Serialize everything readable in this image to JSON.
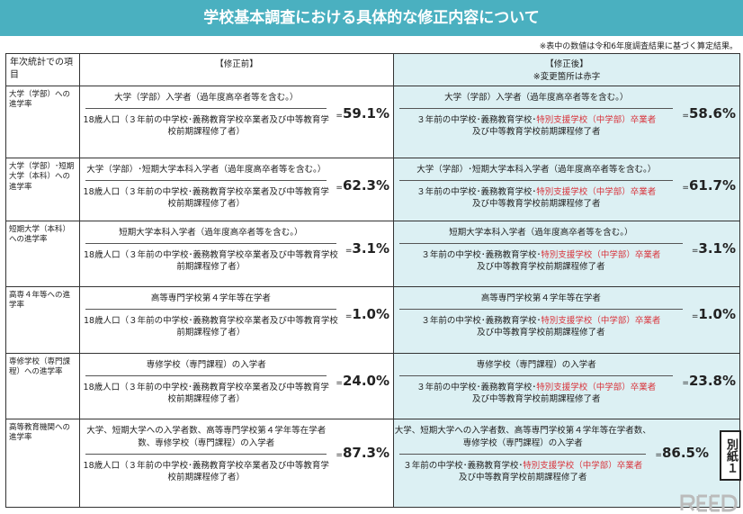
{
  "title": "学校基本調査における具体的な修正内容について",
  "note": "※表中の数値は令和6年度調査結果に基づく算定結果。",
  "header": {
    "item": "年次統計での項目",
    "before": "【修正前】",
    "after": "【修正後】",
    "after_note": "※変更箇所は赤字"
  },
  "rows": [
    {
      "item": "大学（学部）への進学率",
      "before_num": "大学（学部）入学者（過年度高卒者等を含む。）",
      "before_den": "18歳人口（３年前の中学校･義務教育学校卒業者及び中等教育学校前期課程修了者）",
      "before_val": "59.1%",
      "after_num": "大学（学部）入学者（過年度高卒者等を含む。）",
      "after_den_a": "３年前の中学校･義務教育学校･",
      "after_den_red": "特別支援学校（中学部）卒業者",
      "after_den_b": "及び中等教育学校前期課程修了者",
      "after_val": "58.6%"
    },
    {
      "item": "大学（学部）･短期大学（本科）への進学率",
      "before_num": "大学（学部）･短期大学本科入学者（過年度高卒者等を含む。）",
      "before_den": "18歳人口（３年前の中学校･義務教育学校卒業者及び中等教育学校前期課程修了者）",
      "before_val": "62.3%",
      "after_num": "大学（学部）･短期大学本科入学者（過年度高卒者等を含む。）",
      "after_den_a": "３年前の中学校･義務教育学校･",
      "after_den_red": "特別支援学校（中学部）卒業者",
      "after_den_b": "及び中等教育学校前期課程修了者",
      "after_val": "61.7%"
    },
    {
      "item": "短期大学（本科）への進学率",
      "before_num": "短期大学本科入学者（過年度高卒者等を含む。）",
      "before_den": "18歳人口（３年前の中学校･義務教育学校卒業者及び中等教育学校前期課程修了者）",
      "before_val": "3.1%",
      "after_num": "短期大学本科入学者（過年度高卒者等を含む。）",
      "after_den_a": "３年前の中学校･義務教育学校･",
      "after_den_red": "特別支援学校（中学部）卒業者",
      "after_den_b": "及び中等教育学校前期課程修了者",
      "after_val": "3.1%"
    },
    {
      "item": "高専４年等への進学率",
      "before_num": "高等専門学校第４学年等在学者",
      "before_den": "18歳人口（３年前の中学校･義務教育学校卒業者及び中等教育学校前期課程修了者）",
      "before_val": "1.0%",
      "after_num": "高等専門学校第４学年等在学者",
      "after_den_a": "３年前の中学校･義務教育学校･",
      "after_den_red": "特別支援学校（中学部）卒業者",
      "after_den_b": "及び中等教育学校前期課程修了者",
      "after_val": "1.0%"
    },
    {
      "item": "専修学校（専門課程）への進学率",
      "before_num": "専修学校（専門課程）の入学者",
      "before_den": "18歳人口（３年前の中学校･義務教育学校卒業者及び中等教育学校前期課程修了者）",
      "before_val": "24.0%",
      "after_num": "専修学校（専門課程）の入学者",
      "after_den_a": "３年前の中学校･義務教育学校･",
      "after_den_red": "特別支援学校（中学部）卒業者",
      "after_den_b": "及び中等教育学校前期課程修了者",
      "after_val": "23.8%"
    },
    {
      "item": "高等教育機関への進学率",
      "before_num": "大学、短期大学への入学者数、高等専門学校第４学年等在学者数、専修学校（専門課程）の入学者",
      "before_den": "18歳人口（３年前の中学校･義務教育学校卒業者及び中等教育学校前期課程修了者）",
      "before_val": "87.3%",
      "after_num": "大学、短期大学への入学者数、高等専門学校第４学年等在学者数、専修学校（専門課程）の入学者",
      "after_den_a": "３年前の中学校･義務教育学校･",
      "after_den_red": "特別支援学校（中学部）卒業者",
      "after_den_b": "及び中等教育学校前期課程修了者",
      "after_val": "86.5%"
    }
  ],
  "eq": "=",
  "bessi": "別紙１",
  "logo": "ReseEd",
  "colors": {
    "title_bg": "#4ab0c0",
    "after_bg": "#dcf0f3",
    "changed": "#d8343c"
  }
}
